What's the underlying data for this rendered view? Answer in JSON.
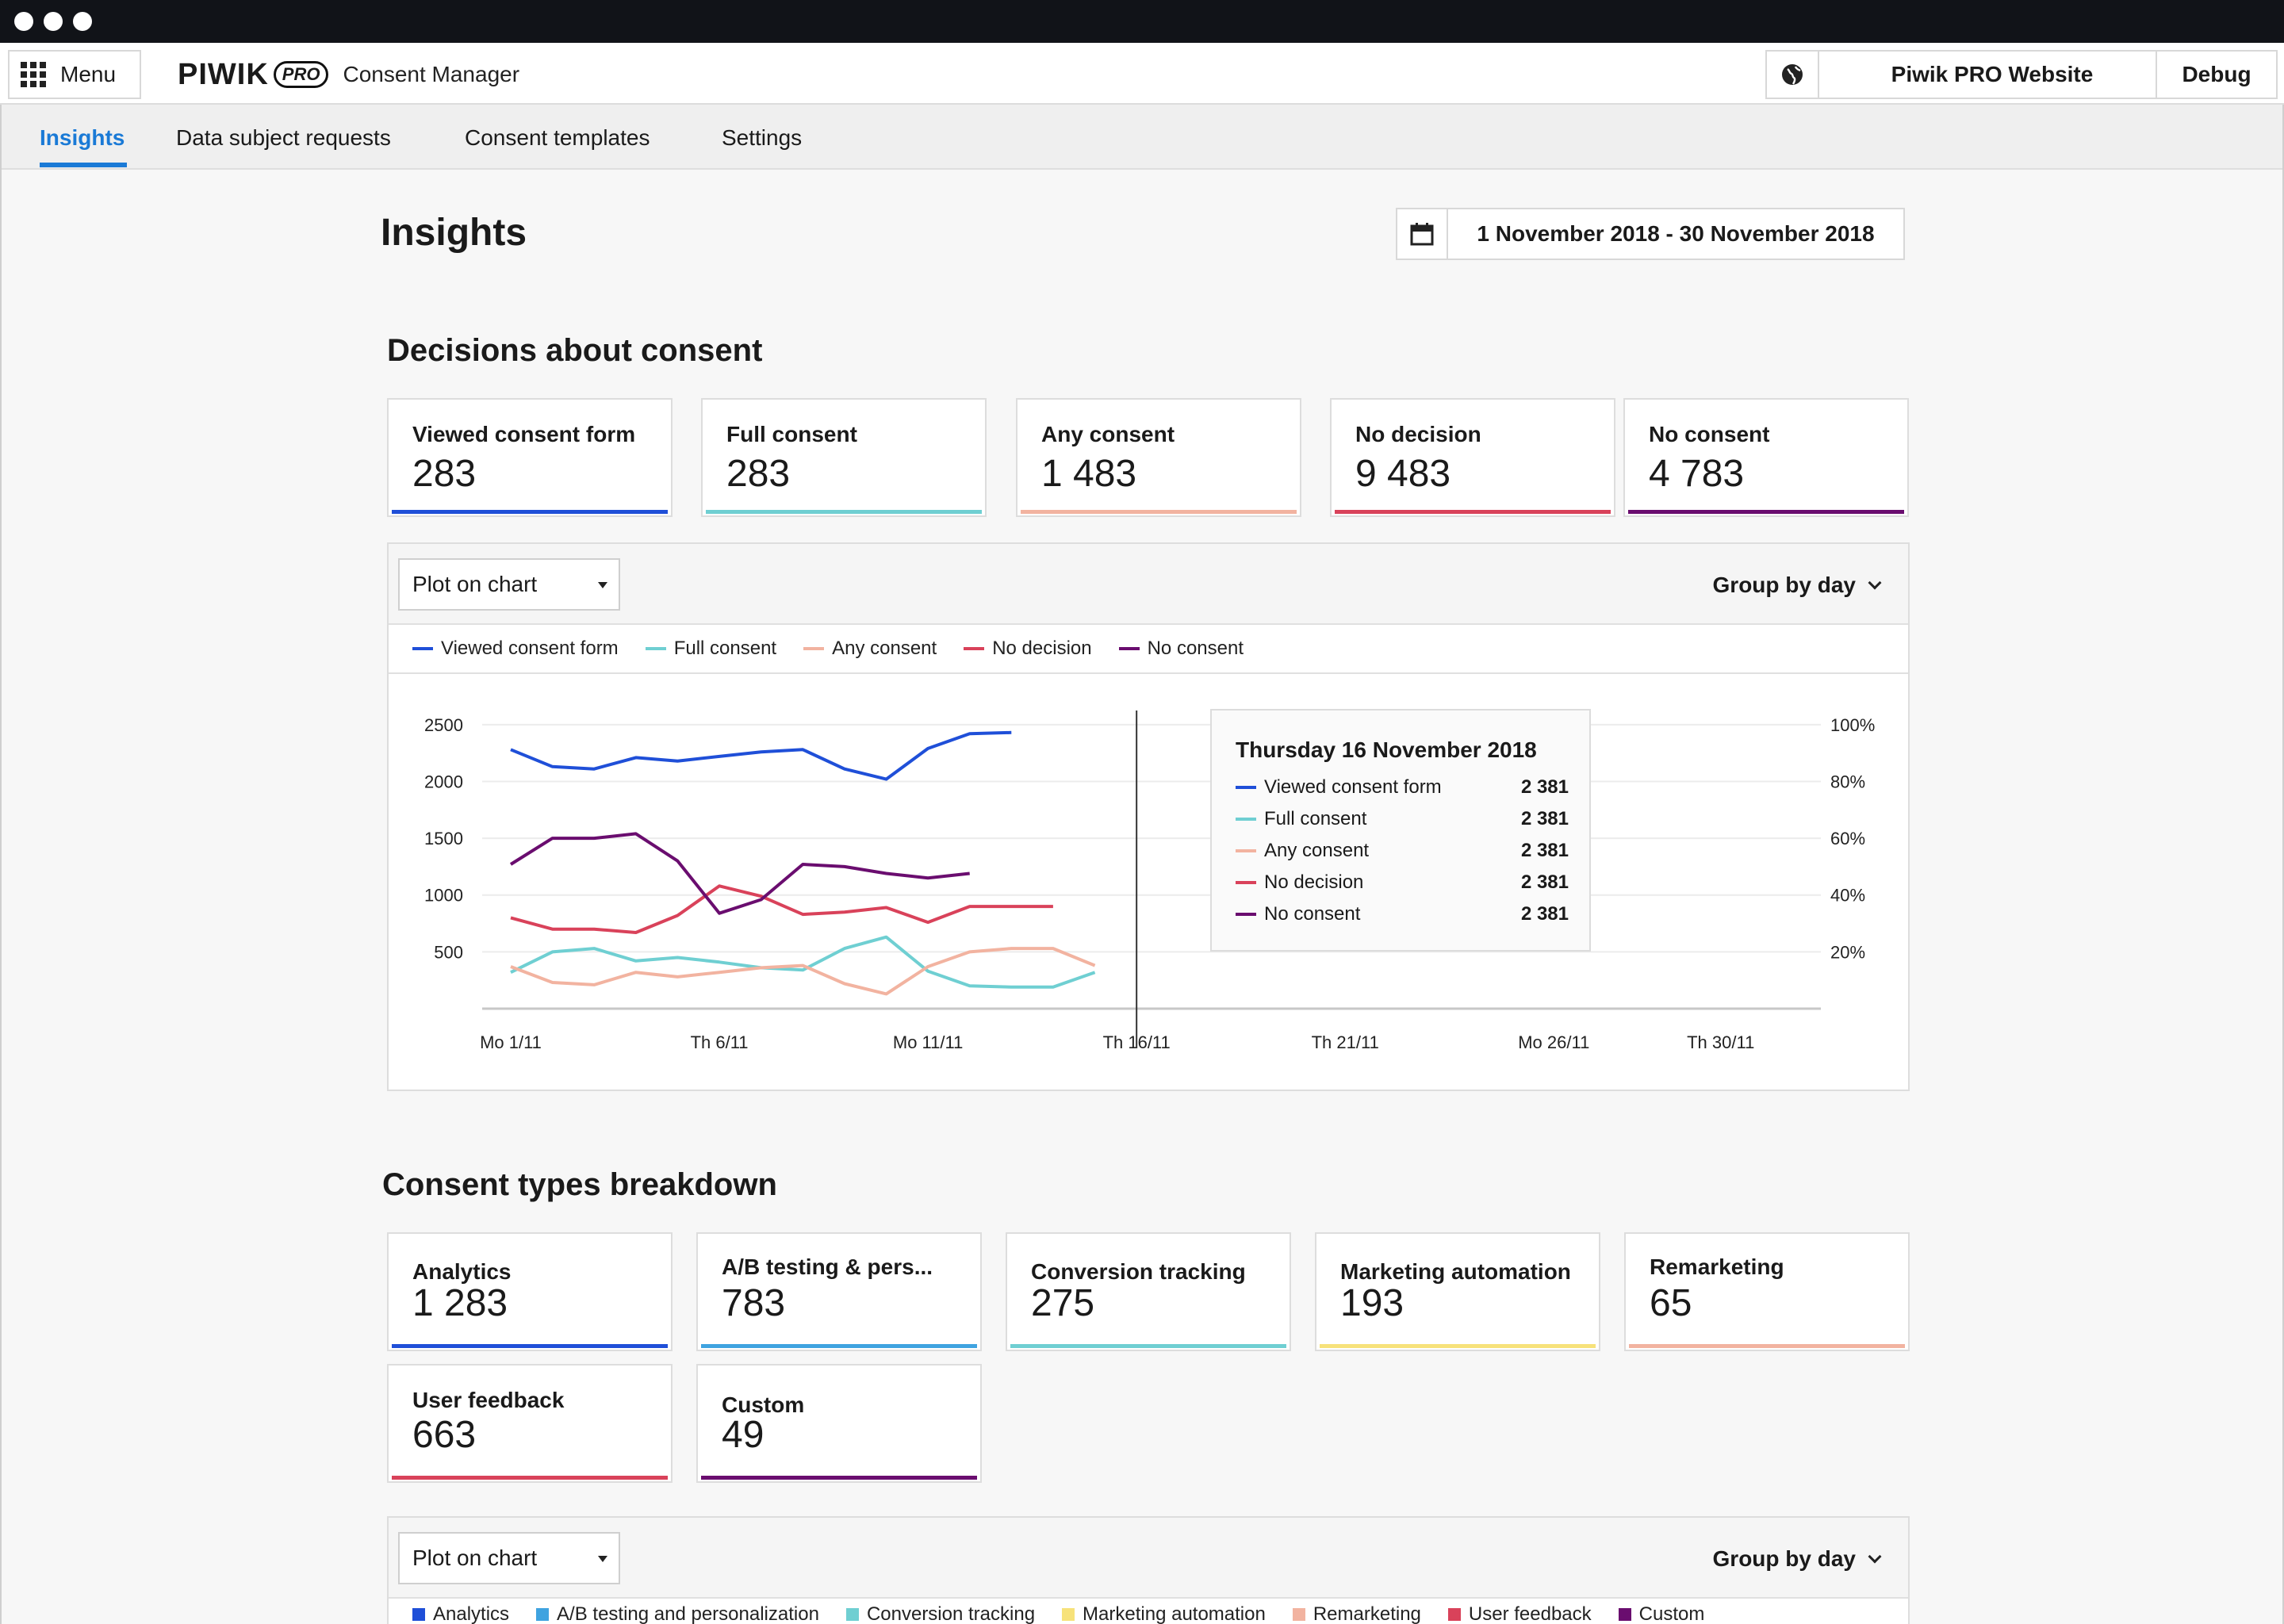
{
  "app": {
    "menu_label": "Menu",
    "logo_word": "PIWIK",
    "logo_pro": "PRO",
    "product": "Consent Manager",
    "site": "Piwik PRO Website",
    "debug": "Debug"
  },
  "tabs": [
    {
      "label": "Insights",
      "active": true
    },
    {
      "label": "Data subject requests"
    },
    {
      "label": "Consent templates"
    },
    {
      "label": "Settings"
    }
  ],
  "page": {
    "title": "Insights",
    "date_range": "1 November 2018 - 30 November 2018"
  },
  "decisions": {
    "title": "Decisions about consent",
    "cards": [
      {
        "label": "Viewed consent form",
        "value": "283",
        "color": "#1f4fd8"
      },
      {
        "label": "Full consent",
        "value": "283",
        "color": "#6fcfd2"
      },
      {
        "label": "Any consent",
        "value": "1 483",
        "color": "#f2b3a0"
      },
      {
        "label": "No decision",
        "value": "9 483",
        "color": "#d9425a"
      },
      {
        "label": "No consent",
        "value": "4 783",
        "color": "#6a0d6f"
      }
    ],
    "plot_label": "Plot on chart",
    "group_label": "Group by day",
    "legend": [
      {
        "label": "Viewed consent form",
        "color": "#1f4fd8"
      },
      {
        "label": "Full consent",
        "color": "#6fcfd2"
      },
      {
        "label": "Any consent",
        "color": "#f2b3a0"
      },
      {
        "label": "No decision",
        "color": "#d9425a"
      },
      {
        "label": "No consent",
        "color": "#6a0d6f"
      }
    ]
  },
  "chart_data": {
    "type": "line",
    "x": [
      1,
      2,
      3,
      4,
      5,
      6,
      7,
      8,
      9,
      10,
      11,
      12,
      13,
      14,
      15,
      16,
      17,
      18,
      19,
      20,
      21
    ],
    "x_ticks": [
      {
        "x": 1,
        "label": "Mo 1/11"
      },
      {
        "x": 6,
        "label": "Th 6/11"
      },
      {
        "x": 11,
        "label": "Mo 11/11"
      },
      {
        "x": 16,
        "label": "Th 16/11"
      },
      {
        "x": 21,
        "label": "Th 21/11"
      },
      {
        "x": 26,
        "label": "Mo 26/11"
      },
      {
        "x": 30,
        "label": "Th 30/11"
      }
    ],
    "xlim": [
      1,
      32.4
    ],
    "ylim": [
      0,
      2750
    ],
    "y_ticks": [
      500,
      1000,
      1500,
      2000,
      2500
    ],
    "y2_ticks": [
      "20%",
      "40%",
      "60%",
      "80%",
      "100%"
    ],
    "series": [
      {
        "name": "Viewed consent form",
        "color": "#1f4fd8",
        "values": [
          2280,
          2130,
          2110,
          2210,
          2180,
          2220,
          2260,
          2280,
          2110,
          2020,
          2290,
          2420,
          2430,
          null,
          null,
          null,
          null,
          null,
          null,
          null,
          null
        ]
      },
      {
        "name": "Full consent",
        "color": "#6fcfd2",
        "values": [
          320,
          500,
          530,
          420,
          450,
          410,
          360,
          340,
          530,
          630,
          330,
          200,
          190,
          190,
          320,
          null,
          null,
          null,
          null,
          null,
          null
        ]
      },
      {
        "name": "Any consent",
        "color": "#f2b3a0",
        "values": [
          370,
          230,
          210,
          320,
          280,
          320,
          360,
          380,
          220,
          130,
          370,
          500,
          530,
          530,
          380,
          null,
          null,
          null,
          null,
          null,
          null
        ]
      },
      {
        "name": "No decision",
        "color": "#d9425a",
        "values": [
          800,
          700,
          700,
          670,
          820,
          1080,
          990,
          830,
          850,
          890,
          760,
          900,
          900,
          900,
          null,
          null,
          null,
          null,
          null,
          null,
          null
        ]
      },
      {
        "name": "No consent",
        "color": "#6a0d6f",
        "values": [
          1270,
          1500,
          1500,
          1540,
          1300,
          840,
          960,
          1270,
          1250,
          1190,
          1150,
          1190,
          null,
          null,
          null,
          null,
          null,
          null,
          null,
          null,
          null
        ]
      }
    ],
    "hover": {
      "x": 16,
      "title": "Thursday 16 November 2018",
      "rows": [
        {
          "label": "Viewed consent form",
          "value": "2 381",
          "color": "#1f4fd8"
        },
        {
          "label": "Full consent",
          "value": "2 381",
          "color": "#6fcfd2"
        },
        {
          "label": "Any consent",
          "value": "2 381",
          "color": "#f2b3a0"
        },
        {
          "label": "No decision",
          "value": "2 381",
          "color": "#d9425a"
        },
        {
          "label": "No consent",
          "value": "2 381",
          "color": "#6a0d6f"
        }
      ]
    }
  },
  "breakdown": {
    "title": "Consent types breakdown",
    "cards": [
      {
        "label": "Analytics",
        "value": "1 283",
        "color": "#1f4fd8"
      },
      {
        "label": "A/B testing & pers...",
        "value": "783",
        "color": "#3fa3e0"
      },
      {
        "label": "Conversion tracking",
        "value": "275",
        "color": "#6fcfd2"
      },
      {
        "label": "Marketing automation",
        "value": "193",
        "color": "#f7e27a"
      },
      {
        "label": "Remarketing",
        "value": "65",
        "color": "#f2b3a0"
      },
      {
        "label": "User feedback",
        "value": "663",
        "color": "#d9425a"
      },
      {
        "label": "Custom",
        "value": "49",
        "color": "#6a0d6f"
      }
    ],
    "plot_label": "Plot on chart",
    "group_label": "Group by day",
    "legend": [
      {
        "label": "Analytics",
        "color": "#1f4fd8"
      },
      {
        "label": "A/B testing and personalization",
        "color": "#3fa3e0"
      },
      {
        "label": "Conversion tracking",
        "color": "#6fcfd2"
      },
      {
        "label": "Marketing automation",
        "color": "#f7e27a"
      },
      {
        "label": "Remarketing",
        "color": "#f2b3a0"
      },
      {
        "label": "User feedback",
        "color": "#d9425a"
      },
      {
        "label": "Custom",
        "color": "#6a0d6f"
      }
    ]
  }
}
